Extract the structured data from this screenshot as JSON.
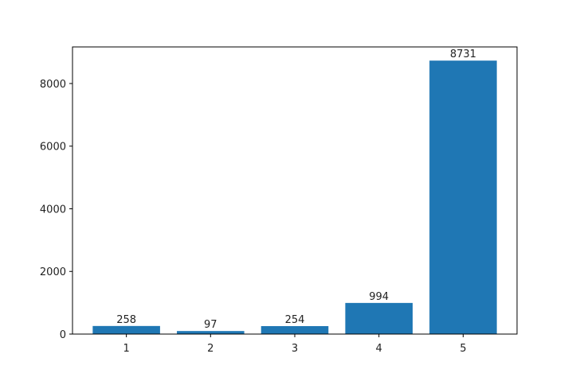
{
  "chart_data": {
    "type": "bar",
    "x": [
      1,
      2,
      3,
      4,
      5
    ],
    "values": [
      258,
      97,
      254,
      994,
      8731
    ],
    "color": "#1f77b4",
    "xlim": [
      0.36,
      5.64
    ],
    "xticks": [
      1,
      2,
      3,
      4,
      5
    ],
    "ylim": [
      0,
      9168
    ],
    "yticks": [
      0,
      2000,
      4000,
      6000,
      8000
    ],
    "bar_width": 0.8
  }
}
